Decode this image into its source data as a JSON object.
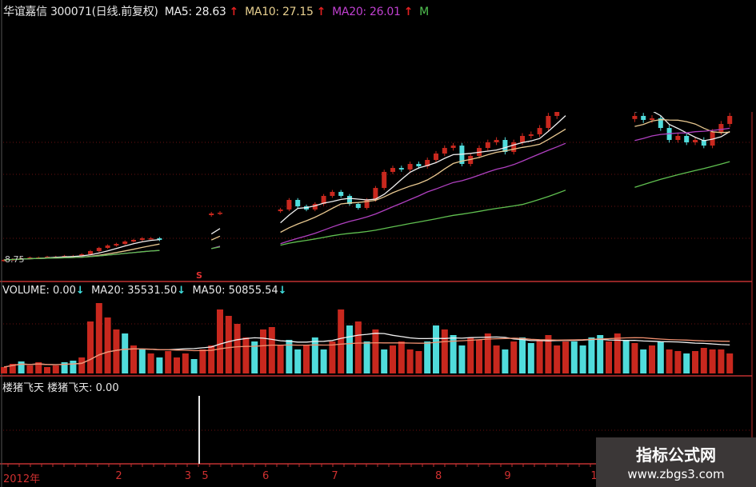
{
  "header": {
    "stock": "华谊嘉信 300071(日线.前复权)",
    "ma5": "MA5: 28.63",
    "ma10": "MA10: 27.15",
    "ma20": "MA20: 26.01",
    "ma_cut": "M",
    "arrow_up": "↑"
  },
  "volume_header": {
    "volume": "VOLUME: 0.00",
    "ma20": "MA20: 35531.50",
    "ma50": "MA50: 50855.54",
    "arrow_down": "↓"
  },
  "indicator_header": {
    "label": "楼猪飞天 楼猪飞天: 0.00"
  },
  "markers": {
    "signal": "S",
    "low_price": "8.75"
  },
  "watermark": {
    "title": "指标公式网",
    "url": "www.zbgs3.com"
  },
  "colors": {
    "up": "#c8281e",
    "down": "#50dcdc",
    "ma5": "#f0f0f0",
    "ma10": "#e8c890",
    "ma20": "#b040c0",
    "ma50": "#60c050",
    "grid": "#6a1010",
    "axis": "#c03030"
  },
  "chart_data": {
    "type": "candlestick+volume",
    "x_axis_labels": [
      {
        "index": 0,
        "label": "2012年"
      },
      {
        "index": 13,
        "label": "2"
      },
      {
        "index": 21,
        "label": "3"
      },
      {
        "index": 23,
        "label": "5"
      },
      {
        "index": 30,
        "label": "6"
      },
      {
        "index": 38,
        "label": "7"
      },
      {
        "index": 50,
        "label": "8"
      },
      {
        "index": 58,
        "label": "9"
      },
      {
        "index": 68,
        "label": "1"
      }
    ],
    "close": [
      8.75,
      8.86,
      8.98,
      9.09,
      9.09,
      9.2,
      9.2,
      9.32,
      9.32,
      9.55,
      10.0,
      10.45,
      10.79,
      11.02,
      11.36,
      11.59,
      11.82,
      11.82,
      11.59,
      null,
      null,
      null,
      null,
      null,
      15.34,
      15.45,
      null,
      null,
      null,
      null,
      null,
      null,
      15.91,
      17.27,
      16.36,
      15.91,
      16.7,
      17.84,
      18.41,
      17.84,
      16.7,
      16.13,
      17.27,
      18.97,
      21.25,
      21.81,
      21.59,
      22.38,
      22.04,
      22.95,
      23.86,
      24.65,
      24.99,
      22.38,
      23.52,
      24.65,
      25.45,
      25.79,
      24.09,
      25.45,
      26.36,
      26.59,
      27.49,
      29.2,
      30.9,
      32.04,
      null,
      null,
      null,
      null,
      null,
      null,
      null,
      29.2,
      28.63,
      28.86,
      27.49,
      25.79,
      26.36,
      25.45,
      25.79,
      24.99,
      26.93,
      28.06,
      29.2
    ],
    "volume": [
      13600,
      20400,
      25500,
      17000,
      23800,
      13600,
      17000,
      23800,
      27200,
      34000,
      110500,
      149600,
      119000,
      93500,
      85000,
      59500,
      51000,
      42500,
      34000,
      47600,
      34000,
      42500,
      30600,
      51000,
      59500,
      136000,
      122400,
      105400,
      76500,
      68000,
      93500,
      98600,
      59500,
      71400,
      51000,
      59500,
      76500,
      51000,
      68000,
      136000,
      102000,
      110500,
      68000,
      93500,
      51000,
      59500,
      68000,
      51000,
      47600,
      68000,
      102000,
      93500,
      81600,
      59500,
      76500,
      71400,
      85000,
      59500,
      51000,
      68000,
      76500,
      64600,
      71400,
      81600,
      59500,
      68000,
      68000,
      59500,
      76500,
      81600,
      68000,
      85000,
      71400,
      64600,
      51000,
      59500,
      68000,
      51000,
      47600,
      42500,
      47600,
      54400,
      51000,
      51000,
      42500
    ],
    "volume_direction": "uuduuuudduuuuudududuuuduuuuuuduuuddudduudududuuuuddudduuuududduuuudddduudududuuduuuu",
    "moving_averages": {
      "price": [
        5,
        10,
        20,
        50
      ],
      "volume": [
        20,
        50
      ]
    },
    "ylim_price_visible_low": 8.75
  }
}
